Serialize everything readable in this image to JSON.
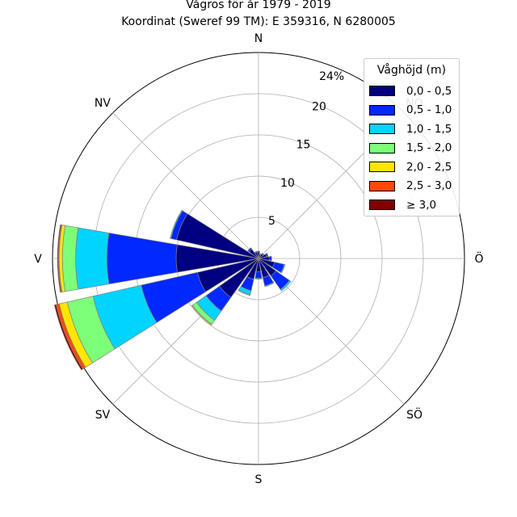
{
  "title": {
    "line1": "Vågros för år 1979 - 2019",
    "line2": "Koordinat (Sweref 99 TM): E 359316, N 6280005"
  },
  "chart_data": {
    "type": "windrose",
    "title": "Vågros för år 1979 - 2019",
    "subtitle": "Koordinat (Sweref 99 TM): E 359316, N 6280005",
    "directions": [
      "N",
      "NNO",
      "NO",
      "ONO",
      "Ö",
      "OSO",
      "SÖ",
      "SSO",
      "S",
      "SSV",
      "SV",
      "VSV",
      "V",
      "VNV",
      "NV",
      "NNV"
    ],
    "axis_direction_labels": [
      "N",
      "NO",
      "Ö",
      "SÖ",
      "S",
      "SV",
      "V",
      "NV"
    ],
    "radial_ticks": [
      5,
      10,
      15,
      20,
      24
    ],
    "radial_tick_labels": [
      "5",
      "10",
      "15",
      "20",
      "24%"
    ],
    "rmax": 25,
    "grid": true,
    "legend_title": "Våghöjd (m)",
    "legend_position": "top-right",
    "bins": [
      {
        "label": "0,0 - 0,5",
        "color": "#000080"
      },
      {
        "label": "0,5 - 1,0",
        "color": "#0028ff"
      },
      {
        "label": "1,0 - 1,5",
        "color": "#00d4ff"
      },
      {
        "label": "1,5 - 2,0",
        "color": "#7dff7a"
      },
      {
        "label": "2,0 - 2,5",
        "color": "#ffe600"
      },
      {
        "label": "2,5 - 3,0",
        "color": "#ff4a00"
      },
      {
        "label": "≥ 3,0",
        "color": "#800000"
      }
    ],
    "cumulative": [
      [
        0.8,
        0.9,
        0.9,
        0.9,
        0.9,
        0.9,
        0.9
      ],
      [
        0.5,
        0.6,
        0.6,
        0.6,
        0.6,
        0.6,
        0.6
      ],
      [
        0.7,
        0.8,
        0.8,
        0.8,
        0.8,
        0.8,
        0.8
      ],
      [
        1.0,
        1.2,
        1.2,
        1.2,
        1.2,
        1.2,
        1.2
      ],
      [
        1.3,
        1.6,
        1.6,
        1.6,
        1.6,
        1.6,
        1.6
      ],
      [
        2.0,
        3.2,
        3.3,
        3.3,
        3.3,
        3.3,
        3.3
      ],
      [
        2.6,
        4.6,
        4.8,
        4.8,
        4.8,
        4.8,
        4.8
      ],
      [
        2.4,
        3.4,
        3.5,
        3.5,
        3.5,
        3.5,
        3.5
      ],
      [
        1.6,
        2.4,
        2.5,
        2.5,
        2.5,
        2.5,
        2.5
      ],
      [
        2.6,
        4.0,
        4.5,
        4.6,
        4.6,
        4.6,
        4.6
      ],
      [
        5.8,
        7.8,
        9.2,
        9.8,
        9.9,
        9.9,
        9.9
      ],
      [
        7.6,
        14.6,
        20.6,
        23.8,
        24.8,
        25.2,
        25.4
      ],
      [
        10.0,
        18.4,
        22.2,
        23.8,
        24.2,
        24.3,
        24.4
      ],
      [
        10.2,
        10.9,
        11.0,
        11.0,
        11.0,
        11.0,
        11.0
      ],
      [
        1.4,
        1.6,
        1.6,
        1.6,
        1.6,
        1.6,
        1.6
      ],
      [
        0.8,
        0.9,
        0.9,
        0.9,
        0.9,
        0.9,
        0.9
      ]
    ]
  }
}
